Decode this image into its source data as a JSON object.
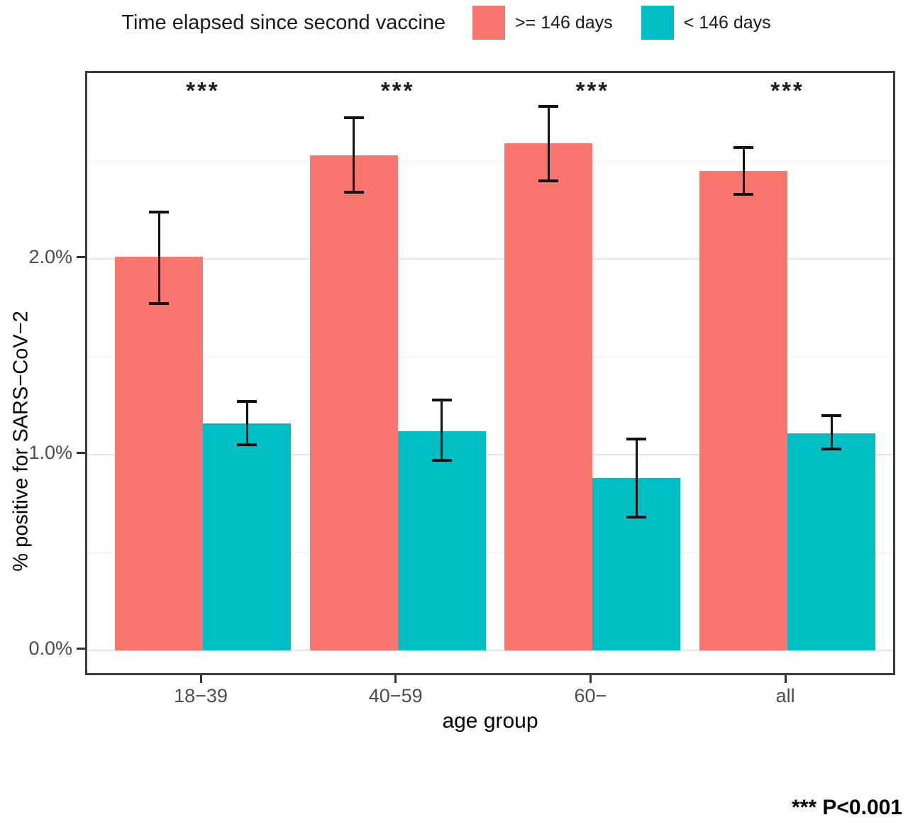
{
  "legend": {
    "title": "Time elapsed since second vaccine",
    "items": [
      {
        "label": ">= 146 days",
        "color": "#F8766D"
      },
      {
        "label": "< 146 days",
        "color": "#00BFC4"
      }
    ]
  },
  "chart_data": {
    "type": "bar",
    "title": "",
    "xlabel": "age group",
    "ylabel": "% positive for SARS−CoV−2",
    "categories": [
      "18−39",
      "40−59",
      "60−",
      "all"
    ],
    "series": [
      {
        "name": ">= 146 days",
        "color": "#F8766D",
        "values": [
          2.01,
          2.53,
          2.59,
          2.45
        ],
        "error_low": [
          1.77,
          2.34,
          2.4,
          2.33
        ],
        "error_high": [
          2.24,
          2.72,
          2.78,
          2.57
        ]
      },
      {
        "name": "< 146 days",
        "color": "#00BFC4",
        "values": [
          1.16,
          1.12,
          0.88,
          1.11
        ],
        "error_low": [
          1.05,
          0.97,
          0.68,
          1.03
        ],
        "error_high": [
          1.27,
          1.28,
          1.08,
          1.2
        ]
      }
    ],
    "significance": [
      "***",
      "***",
      "***",
      "***"
    ],
    "yticks": [
      "0.0%",
      "1.0%",
      "2.0%"
    ],
    "ytick_values": [
      0,
      1,
      2
    ],
    "ylim": [
      0,
      2.95
    ],
    "grid_major": [
      0,
      1,
      2
    ],
    "grid_minor": [
      0.5,
      1.5,
      2.5
    ],
    "grid": true,
    "legend_position": "top"
  },
  "footnote": "*** P<0.001"
}
